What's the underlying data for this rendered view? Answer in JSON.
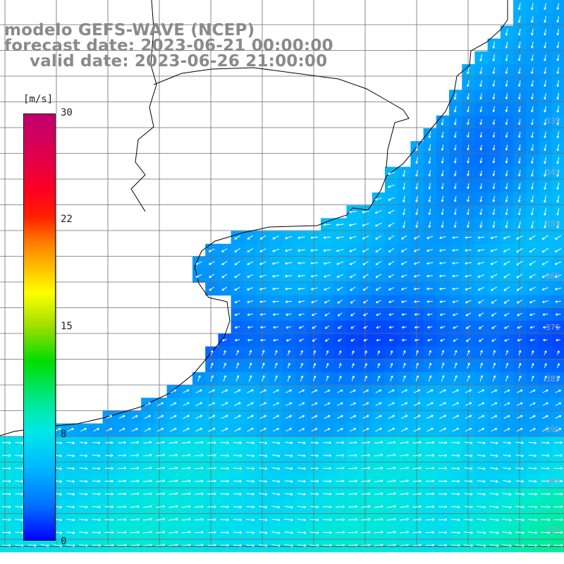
{
  "title": {
    "line1": "modelo GEFS-WAVE (NCEP)",
    "line2": "forecast date: 2023-06-21 00:00:00",
    "line3": "valid date: 2023-06-26 21:00:00"
  },
  "colorbar": {
    "unit": "[m/s]",
    "ticks": [
      "30",
      "22",
      "15",
      "8",
      "0"
    ],
    "tick_values": [
      30,
      22,
      15,
      8,
      0
    ],
    "range": [
      0,
      30
    ]
  },
  "lat_labels": [
    "33S",
    "34S",
    "35S",
    "36S",
    "37S",
    "38S",
    "39S",
    "40S",
    "41S"
  ],
  "colors": {
    "land": "#ffffff",
    "coast": "#000000",
    "grid": "#6e6e6e",
    "arrow": "#ffffff",
    "label_text": "#8a8a8a"
  }
}
